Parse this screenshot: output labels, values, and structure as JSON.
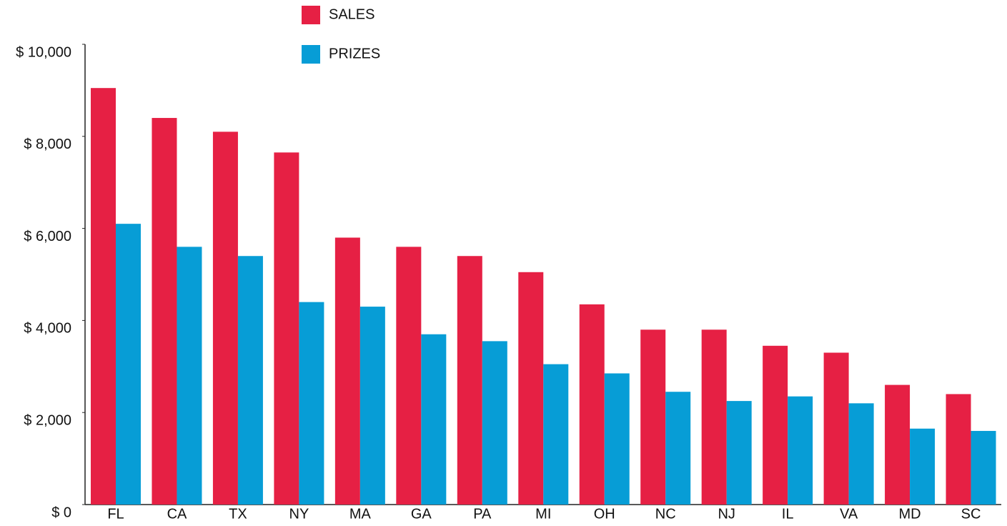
{
  "chart_data": {
    "type": "bar",
    "categories": [
      "FL",
      "CA",
      "TX",
      "NY",
      "MA",
      "GA",
      "PA",
      "MI",
      "OH",
      "NC",
      "NJ",
      "IL",
      "VA",
      "MD",
      "SC"
    ],
    "series": [
      {
        "name": "SALES",
        "color": "#e62044",
        "values": [
          9050,
          8400,
          8100,
          7650,
          5800,
          5600,
          5400,
          5050,
          4350,
          3800,
          3800,
          3450,
          3300,
          2600,
          2400
        ]
      },
      {
        "name": "PRIZES",
        "color": "#079dd6",
        "values": [
          6100,
          5600,
          5400,
          4400,
          4300,
          3700,
          3550,
          3050,
          2850,
          2450,
          2250,
          2350,
          2200,
          1650,
          1600
        ]
      }
    ],
    "ylim": [
      0,
      10000
    ],
    "yticks": [
      {
        "value": 0,
        "label": "$ 0"
      },
      {
        "value": 2000,
        "label": "$ 2,000"
      },
      {
        "value": 4000,
        "label": "$ 4,000"
      },
      {
        "value": 6000,
        "label": "$ 6,000"
      },
      {
        "value": 8000,
        "label": "$ 8,000"
      },
      {
        "value": 10000,
        "label": "$ 10,000"
      }
    ],
    "grid": false
  }
}
